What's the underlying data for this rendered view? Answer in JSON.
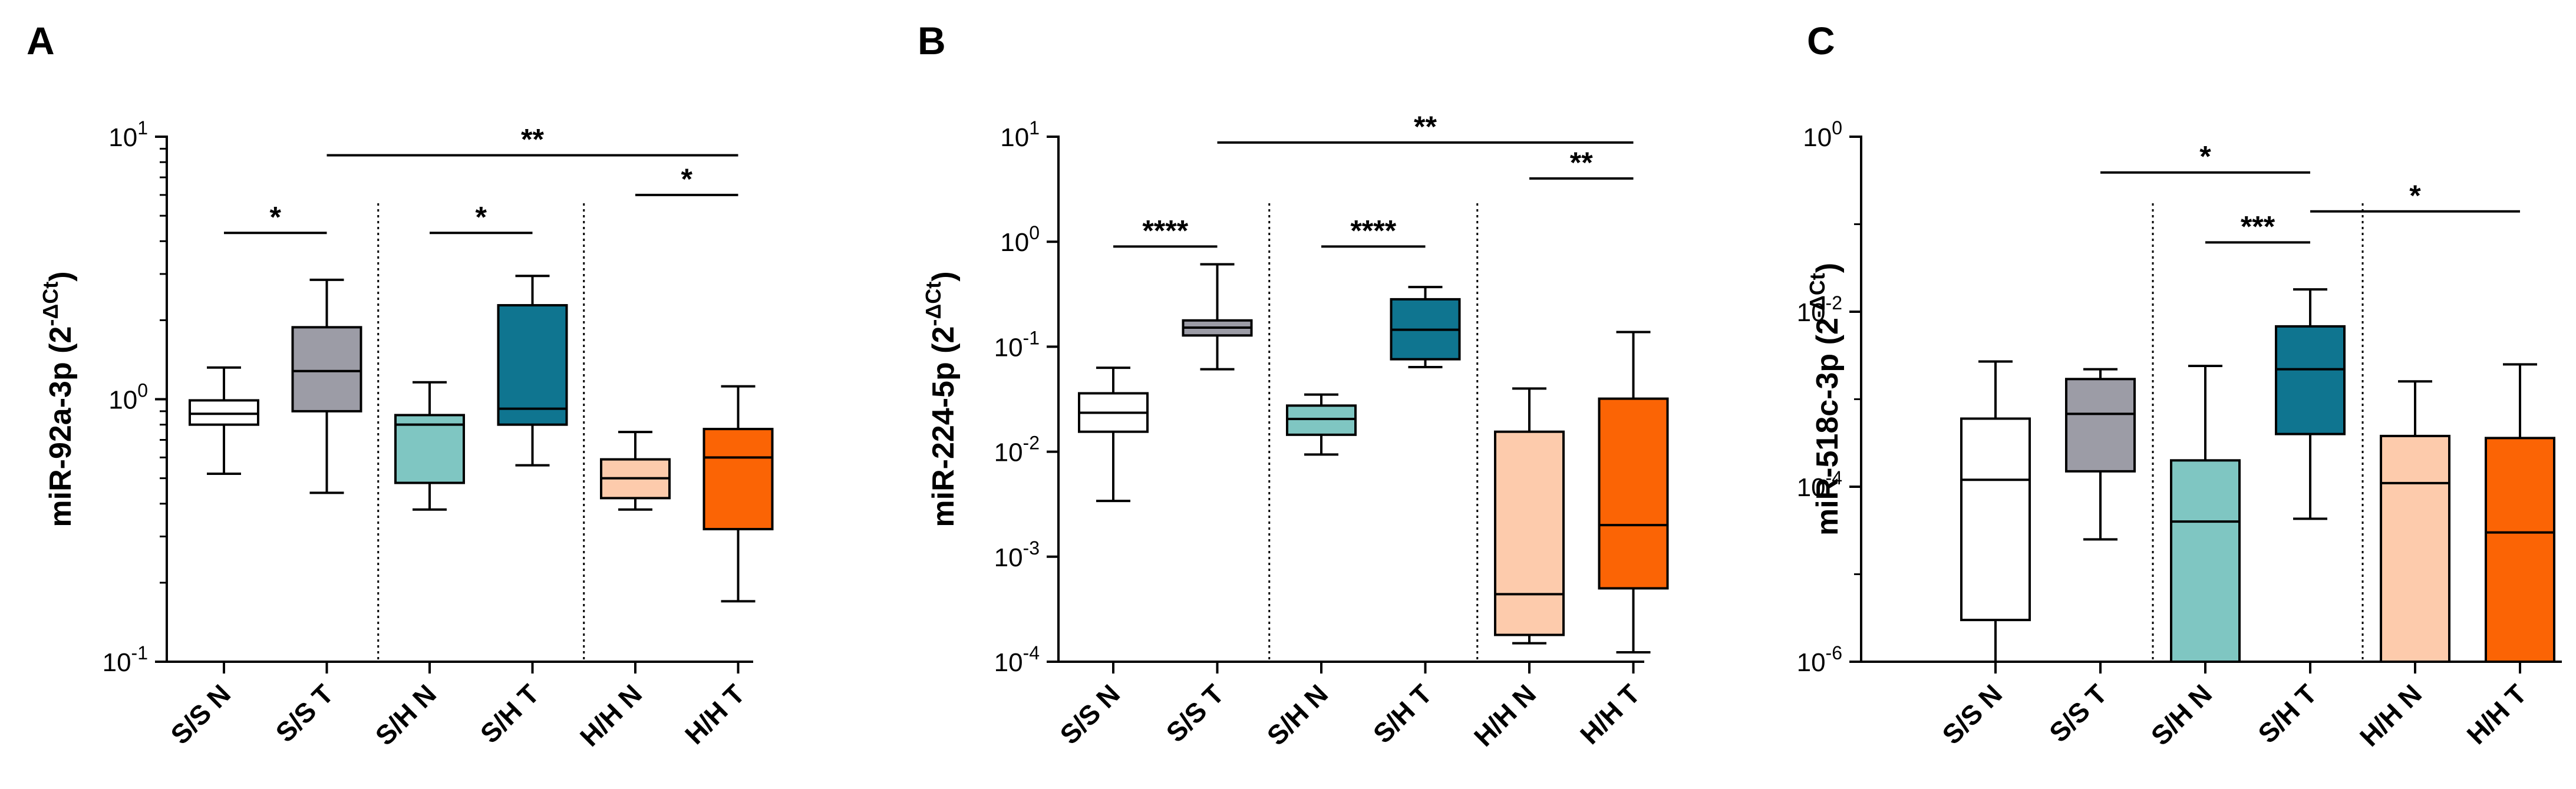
{
  "chart_data": [
    {
      "type": "box",
      "panel_label": "A",
      "ylabel": "miR-92a-3p (2",
      "ylabel_sup": "-ΔCt",
      "ylabel_close": ")",
      "yscale": "log",
      "ylim": [
        0.1,
        10
      ],
      "yticks": [
        {
          "value": 10,
          "base": "10",
          "exp": "1"
        },
        {
          "value": 1,
          "base": "10",
          "exp": "0"
        },
        {
          "value": 0.1,
          "base": "10",
          "exp": "-1"
        }
      ],
      "categories": [
        "S/S N",
        "S/S T",
        "S/H N",
        "S/H T",
        "H/H N",
        "H/H T"
      ],
      "colors": [
        "#ffffff",
        "#9c9ca6",
        "#7fc6c2",
        "#0f7590",
        "#fdcbac",
        "#fb6405"
      ],
      "boxes": [
        {
          "min": 0.52,
          "q1": 0.8,
          "median": 0.88,
          "q3": 0.99,
          "max": 1.32
        },
        {
          "min": 0.44,
          "q1": 0.9,
          "median": 1.28,
          "q3": 1.88,
          "max": 2.85
        },
        {
          "min": 0.38,
          "q1": 0.48,
          "median": 0.8,
          "q3": 0.87,
          "max": 1.16
        },
        {
          "min": 0.56,
          "q1": 0.8,
          "median": 0.92,
          "q3": 2.28,
          "max": 2.95
        },
        {
          "min": 0.38,
          "q1": 0.42,
          "median": 0.5,
          "q3": 0.59,
          "max": 0.75
        },
        {
          "min": 0.17,
          "q1": 0.32,
          "median": 0.6,
          "q3": 0.77,
          "max": 1.12
        }
      ],
      "separators_after": [
        2,
        4
      ],
      "significance": [
        {
          "from": 1,
          "to": 2,
          "y": 4.3,
          "label": "*"
        },
        {
          "from": 3,
          "to": 4,
          "y": 4.3,
          "label": "*"
        },
        {
          "from": 5,
          "to": 6,
          "y": 6.0,
          "label": "*"
        },
        {
          "from": 2,
          "to": 6,
          "y": 8.5,
          "label": "**"
        }
      ]
    },
    {
      "type": "box",
      "panel_label": "B",
      "ylabel": "miR-224-5p (2",
      "ylabel_sup": "-ΔCt",
      "ylabel_close": ")",
      "yscale": "log",
      "ylim": [
        0.0001,
        10
      ],
      "yticks": [
        {
          "value": 10,
          "base": "10",
          "exp": "1"
        },
        {
          "value": 1,
          "base": "10",
          "exp": "0"
        },
        {
          "value": 0.1,
          "base": "10",
          "exp": "-1"
        },
        {
          "value": 0.01,
          "base": "10",
          "exp": "-2"
        },
        {
          "value": 0.001,
          "base": "10",
          "exp": "-3"
        },
        {
          "value": 0.0001,
          "base": "10",
          "exp": "-4"
        }
      ],
      "categories": [
        "S/S N",
        "S/S T",
        "S/H N",
        "S/H T",
        "H/H N",
        "H/H T"
      ],
      "colors": [
        "#ffffff",
        "#9c9ca6",
        "#7fc6c2",
        "#0f7590",
        "#fdcbac",
        "#fb6405"
      ],
      "boxes": [
        {
          "min": 0.0034,
          "q1": 0.0155,
          "median": 0.0235,
          "q3": 0.036,
          "max": 0.063
        },
        {
          "min": 0.061,
          "q1": 0.128,
          "median": 0.152,
          "q3": 0.178,
          "max": 0.61
        },
        {
          "min": 0.0094,
          "q1": 0.0145,
          "median": 0.0205,
          "q3": 0.0275,
          "max": 0.035
        },
        {
          "min": 0.064,
          "q1": 0.076,
          "median": 0.145,
          "q3": 0.283,
          "max": 0.37
        },
        {
          "min": 0.00015,
          "q1": 0.00018,
          "median": 0.00044,
          "q3": 0.0155,
          "max": 0.04
        },
        {
          "min": 0.000123,
          "q1": 0.0005,
          "median": 0.002,
          "q3": 0.032,
          "max": 0.138
        }
      ],
      "separators_after": [
        2,
        4
      ],
      "significance": [
        {
          "from": 1,
          "to": 2,
          "y": 0.9,
          "label": "****"
        },
        {
          "from": 3,
          "to": 4,
          "y": 0.9,
          "label": "****"
        },
        {
          "from": 5,
          "to": 6,
          "y": 4.0,
          "label": "**"
        },
        {
          "from": 2,
          "to": 6,
          "y": 8.8,
          "label": "**"
        }
      ]
    },
    {
      "type": "box",
      "panel_label": "C",
      "ylabel": "miR-518c-3p (2",
      "ylabel_sup": "-ΔCt",
      "ylabel_close": ")",
      "yscale": "log",
      "ylim": [
        1e-06,
        1
      ],
      "yticks": [
        {
          "value": 1,
          "base": "10",
          "exp": "0"
        },
        {
          "value": 0.01,
          "base": "10",
          "exp": "-2"
        },
        {
          "value": 0.0001,
          "base": "10",
          "exp": "-4"
        },
        {
          "value": 1e-06,
          "base": "10",
          "exp": "-6"
        }
      ],
      "categories": [
        "S/S N",
        "S/S T",
        "S/H N",
        "S/H T",
        "H/H N",
        "H/H T"
      ],
      "colors": [
        "#ffffff",
        "#9c9ca6",
        "#7fc6c2",
        "#0f7590",
        "#fdcbac",
        "#fb6405"
      ],
      "boxes": [
        {
          "min": 1e-06,
          "q1": 3e-06,
          "median": 0.00012,
          "q3": 0.0006,
          "max": 0.0027
        },
        {
          "min": 2.5e-05,
          "q1": 0.00015,
          "median": 0.00068,
          "q3": 0.0017,
          "max": 0.0022
        },
        {
          "min": 1e-06,
          "q1": 1e-06,
          "median": 4e-05,
          "q3": 0.0002,
          "max": 0.0024
        },
        {
          "min": 4.3e-05,
          "q1": 0.0004,
          "median": 0.0022,
          "q3": 0.0068,
          "max": 0.018
        },
        {
          "min": 1e-06,
          "q1": 1e-06,
          "median": 0.00011,
          "q3": 0.00038,
          "max": 0.0016
        },
        {
          "min": 1e-06,
          "q1": 1e-06,
          "median": 3e-05,
          "q3": 0.00036,
          "max": 0.0025
        }
      ],
      "separators_after": [
        2,
        4
      ],
      "significance": [
        {
          "from": 2,
          "to": 4,
          "y": 0.39,
          "label": "*"
        },
        {
          "from": 3,
          "to": 4,
          "y": 0.062,
          "label": "***"
        },
        {
          "from": 4,
          "to": 6,
          "y": 0.14,
          "label": "*"
        }
      ]
    }
  ]
}
